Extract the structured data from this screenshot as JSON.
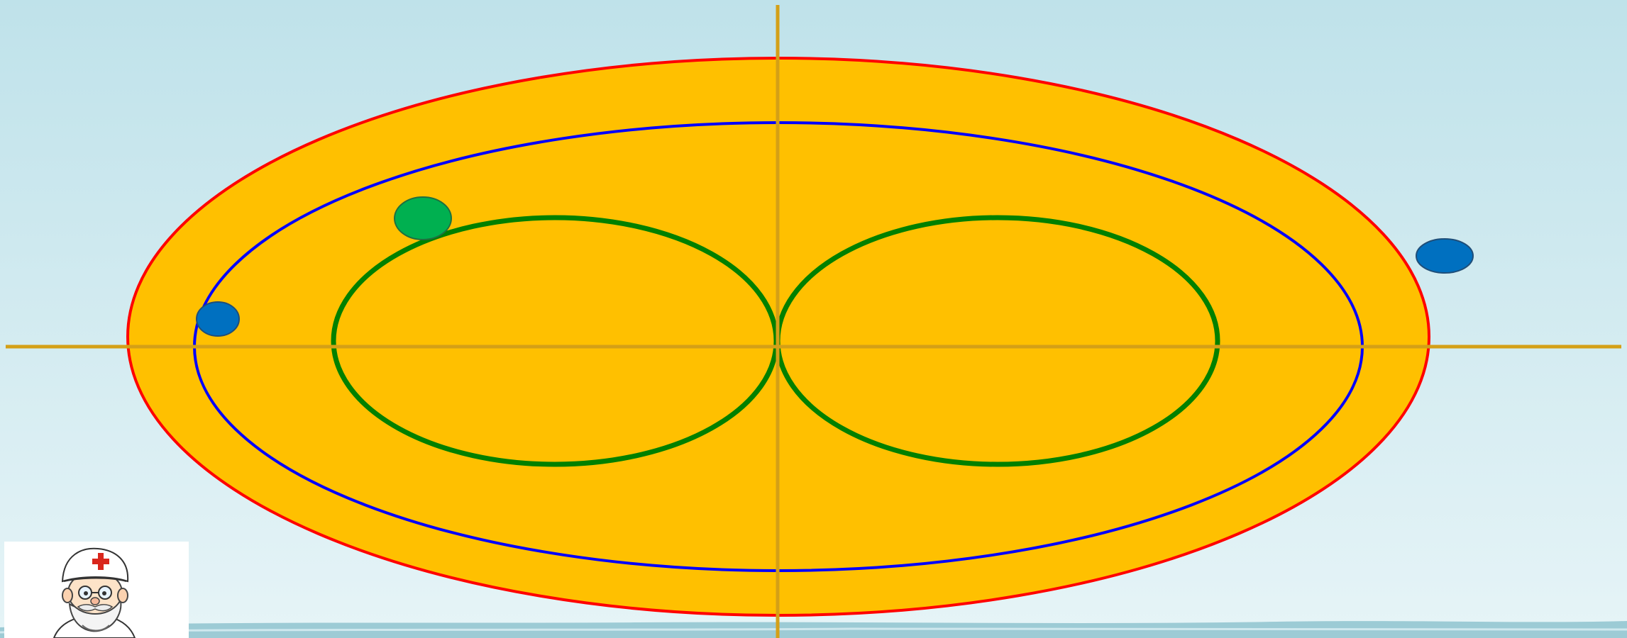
{
  "scene": {
    "background_top": "#bfe2ea",
    "background_bottom": "#e6f4f7",
    "fill_color": "#ffc000"
  },
  "diagram": {
    "outer_ellipse": {
      "stroke": "#ff0000"
    },
    "middle_ellipse": {
      "stroke": "#0000ff"
    },
    "inner_loops": {
      "stroke": "#008000"
    },
    "axes": {
      "stroke": "#d4a017"
    },
    "markers": [
      {
        "name": "green-marker",
        "color": "#00b050",
        "stroke": "#1f6f3f"
      },
      {
        "name": "blue-marker-left",
        "color": "#0070c0",
        "stroke": "#1f4e79"
      },
      {
        "name": "blue-marker-right",
        "color": "#0070c0",
        "stroke": "#1f4e79"
      }
    ]
  },
  "mascot": {
    "icon": "doctor-icon",
    "cross_color": "#d9261c"
  }
}
